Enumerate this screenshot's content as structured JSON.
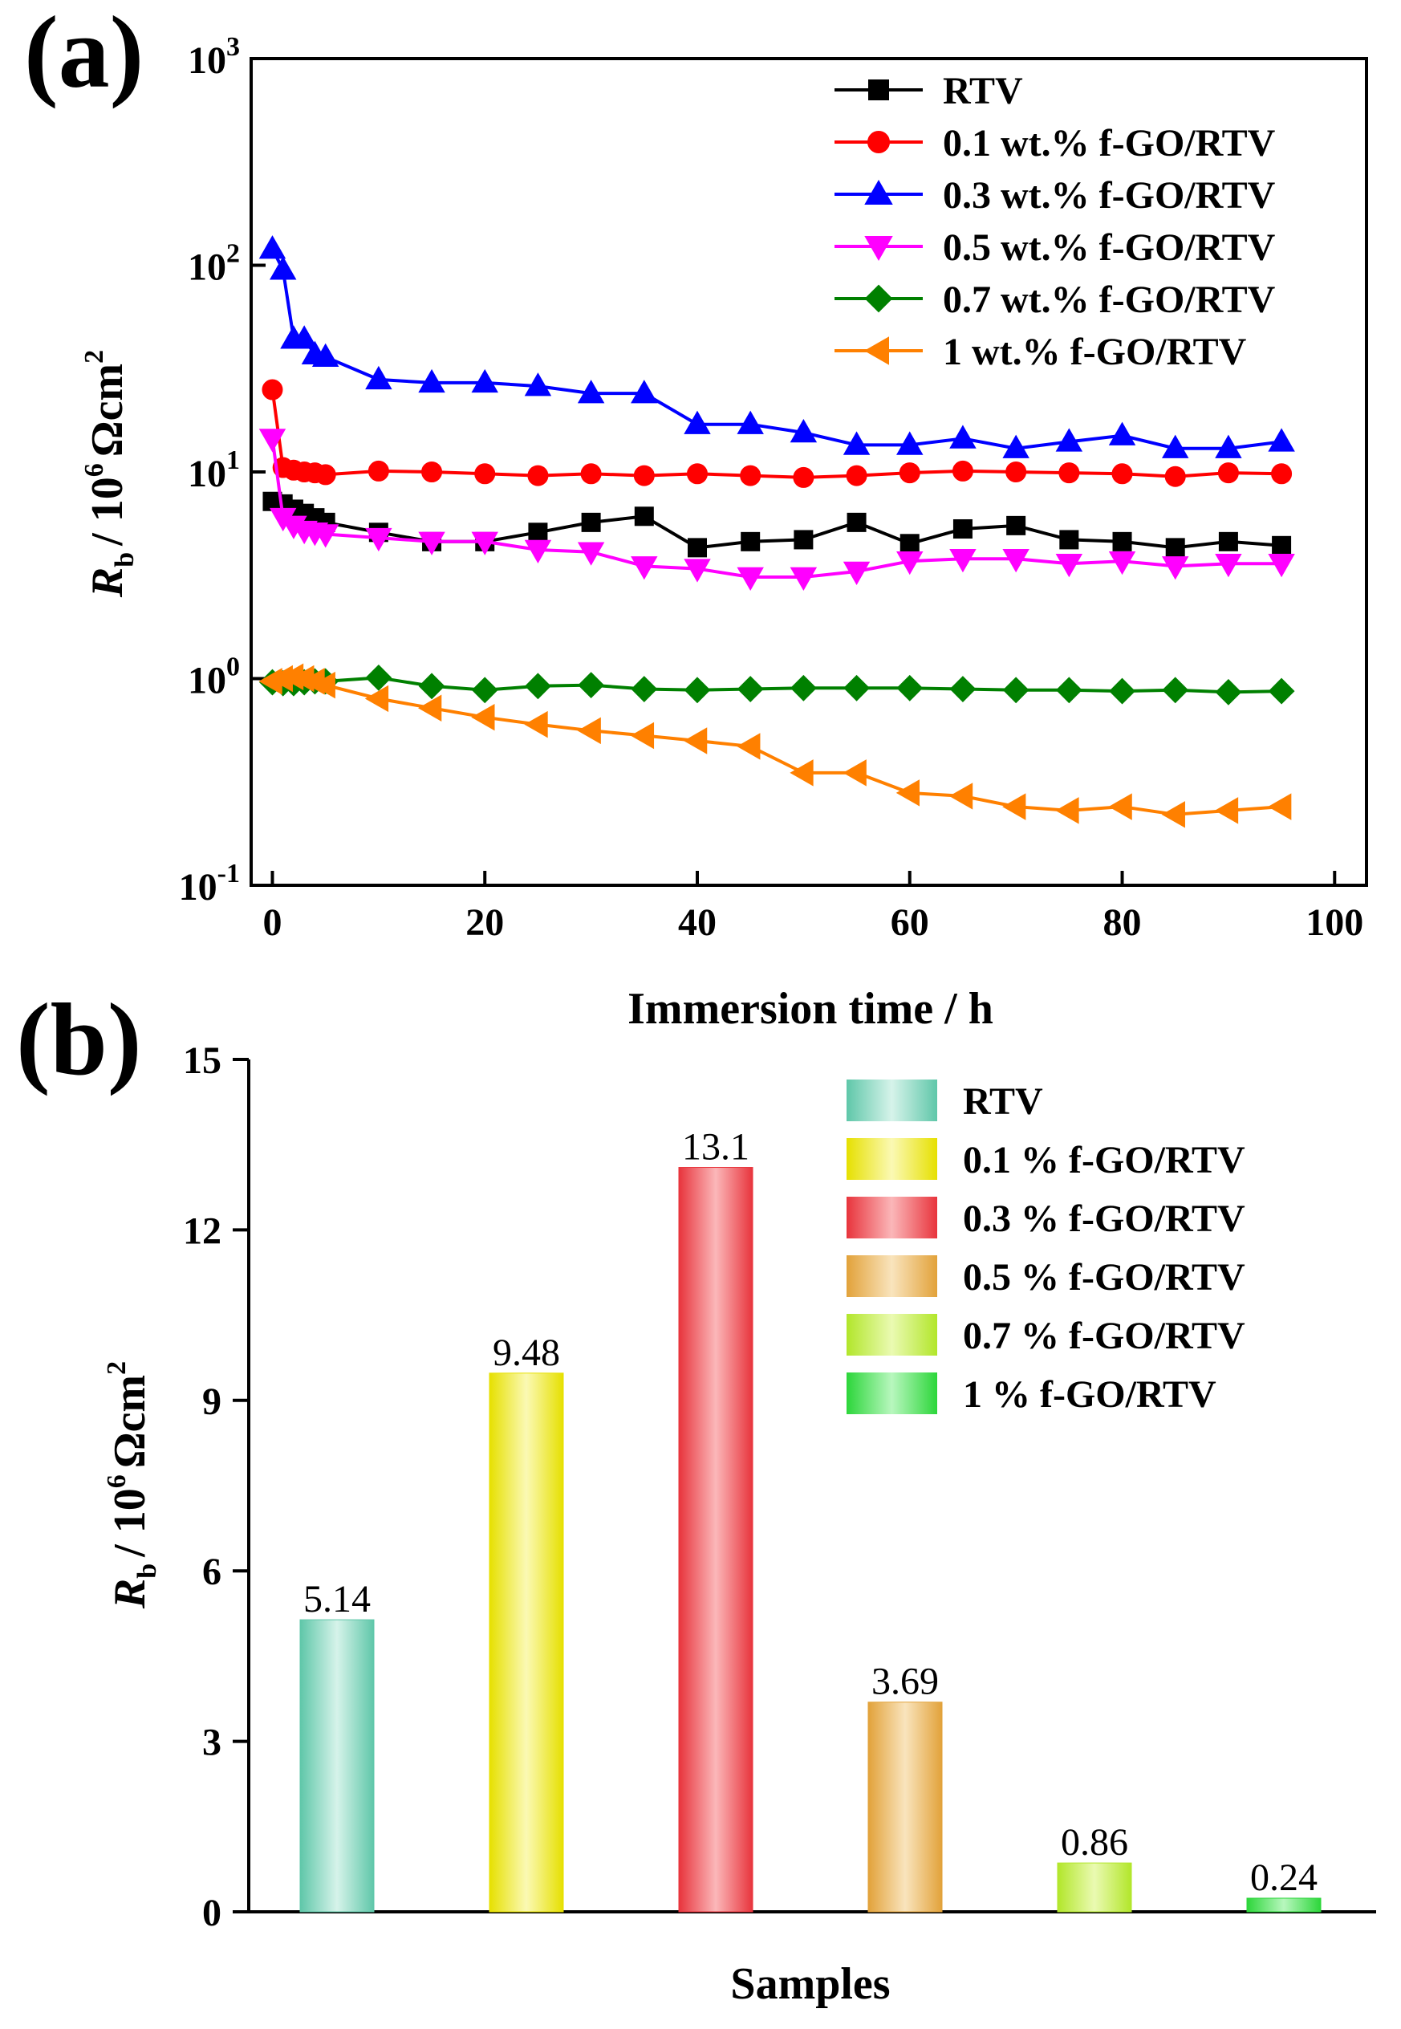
{
  "chart_data": [
    {
      "panel": "(a)",
      "type": "line",
      "xlabel": "Immersion time / h",
      "ylabel": {
        "symbol": "R",
        "subscript": "b",
        "unit_prefix": "/ 10",
        "unit_exp": "6",
        "unit": "Ωcm",
        "unit_sq": "2"
      },
      "xlim": [
        -2,
        103
      ],
      "ylim_log10": [
        -1,
        3
      ],
      "yscale": "log",
      "xticks": [
        0,
        20,
        40,
        60,
        80,
        100
      ],
      "yticks": [
        {
          "base": "10",
          "exp": "-1",
          "value": 0.1
        },
        {
          "base": "10",
          "exp": "0",
          "value": 1
        },
        {
          "base": "10",
          "exp": "1",
          "value": 10
        },
        {
          "base": "10",
          "exp": "2",
          "value": 100
        },
        {
          "base": "10",
          "exp": "3",
          "value": 1000
        }
      ],
      "x": [
        0,
        1,
        2,
        3,
        4,
        5,
        10,
        15,
        20,
        25,
        30,
        35,
        40,
        45,
        50,
        55,
        60,
        65,
        70,
        75,
        80,
        85,
        90,
        95
      ],
      "series": [
        {
          "name": "RTV",
          "color": "#000000",
          "marker": "square",
          "values": [
            7.2,
            7.0,
            6.6,
            6.3,
            6.0,
            5.7,
            5.1,
            4.6,
            4.6,
            5.1,
            5.7,
            6.1,
            4.3,
            4.6,
            4.7,
            5.7,
            4.5,
            5.3,
            5.5,
            4.7,
            4.6,
            4.3,
            4.6,
            4.4
          ]
        },
        {
          "name": "0.1 wt.% f-GO/RTV",
          "color": "#ff0000",
          "marker": "circle",
          "values": [
            25,
            10.5,
            10.2,
            10.0,
            9.9,
            9.7,
            10.1,
            10.0,
            9.8,
            9.6,
            9.8,
            9.6,
            9.8,
            9.6,
            9.4,
            9.6,
            9.9,
            10.1,
            10.0,
            9.9,
            9.8,
            9.5,
            9.9,
            9.8
          ]
        },
        {
          "name": "0.3 wt.% f-GO/RTV",
          "color": "#0000ff",
          "marker": "triangle-up",
          "values": [
            120,
            95,
            44,
            44,
            37,
            36,
            28,
            27,
            27,
            26,
            24,
            24,
            17,
            17,
            15.5,
            13.5,
            13.5,
            14.5,
            13,
            14,
            15,
            13,
            13,
            14
          ]
        },
        {
          "name": "0.5 wt.% f-GO/RTV",
          "color": "#ff00ff",
          "marker": "triangle-down",
          "values": [
            14.5,
            6.0,
            5.5,
            5.2,
            5.1,
            5.0,
            4.8,
            4.6,
            4.6,
            4.2,
            4.1,
            3.5,
            3.4,
            3.1,
            3.1,
            3.3,
            3.7,
            3.8,
            3.8,
            3.6,
            3.7,
            3.5,
            3.6,
            3.6
          ]
        },
        {
          "name": "0.7 wt.% f-GO/RTV",
          "color": "#008000",
          "marker": "diamond",
          "values": [
            0.96,
            0.95,
            0.95,
            0.96,
            0.97,
            0.97,
            1.01,
            0.92,
            0.88,
            0.92,
            0.93,
            0.89,
            0.88,
            0.89,
            0.9,
            0.9,
            0.9,
            0.89,
            0.88,
            0.88,
            0.87,
            0.88,
            0.86,
            0.87
          ]
        },
        {
          "name": "1 wt.% f-GO/RTV",
          "color": "#ff8000",
          "marker": "triangle-left",
          "values": [
            0.97,
            1.0,
            1.02,
            1.0,
            0.97,
            0.93,
            0.8,
            0.72,
            0.65,
            0.6,
            0.56,
            0.53,
            0.5,
            0.47,
            0.35,
            0.35,
            0.28,
            0.27,
            0.24,
            0.23,
            0.24,
            0.22,
            0.23,
            0.24
          ]
        }
      ],
      "legend_position": "top-right"
    },
    {
      "panel": "(b)",
      "type": "bar",
      "xlabel": "Samples",
      "ylabel": {
        "symbol": "R",
        "subscript": "b",
        "unit_prefix": "/ 10",
        "unit_exp": "6",
        "unit": "Ωcm",
        "unit_sq": "2"
      },
      "ylim": [
        0,
        15
      ],
      "yticks": [
        "0",
        "3",
        "6",
        "9",
        "12",
        "15"
      ],
      "categories": [
        "RTV",
        "0.1 % f-GO/RTV",
        "0.3 % f-GO/RTV",
        "0.5 % f-GO/RTV",
        "0.7 % f-GO/RTV",
        "1 % f-GO/RTV"
      ],
      "values": [
        5.14,
        9.48,
        13.1,
        3.69,
        0.86,
        0.24
      ],
      "value_labels": [
        "5.14",
        "9.48",
        "13.1",
        "3.69",
        "0.86",
        "0.24"
      ],
      "colors": [
        {
          "edge": "#5fc7a9",
          "center": "#d6f3ea"
        },
        {
          "edge": "#e6e000",
          "center": "#fbf9b4"
        },
        {
          "edge": "#e8343c",
          "center": "#fbb7b9"
        },
        {
          "edge": "#e2a23a",
          "center": "#f9e4bd"
        },
        {
          "edge": "#b2e62a",
          "center": "#eafab2"
        },
        {
          "edge": "#2cd63a",
          "center": "#b8f7be"
        }
      ],
      "legend_position": "top-right"
    }
  ]
}
